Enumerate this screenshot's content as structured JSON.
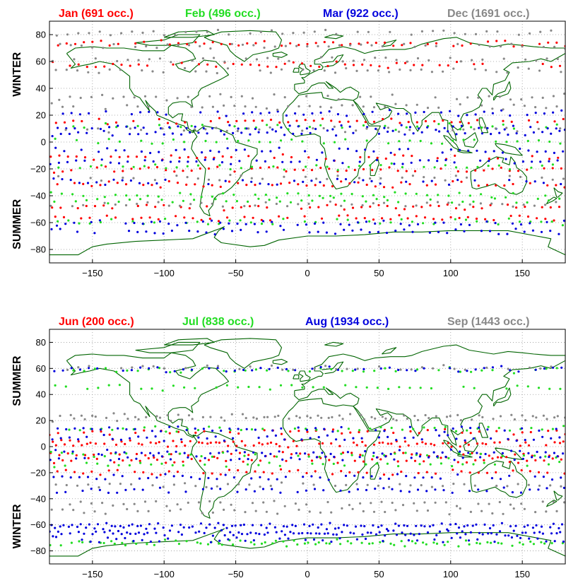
{
  "chart_data": [
    {
      "type": "scatter",
      "xlim": [
        -180,
        180
      ],
      "ylim": [
        -90,
        90
      ],
      "xticks": [
        -150,
        -100,
        -50,
        0,
        50,
        100,
        150
      ],
      "yticks": [
        -80,
        -60,
        -40,
        -20,
        0,
        20,
        40,
        60,
        80
      ],
      "grid": true,
      "legend_placement": "top",
      "top_label": "WINTER",
      "bottom_label": "SUMMER",
      "coastline_color": "#006400",
      "series": [
        {
          "name": "Jan (691 occ.)",
          "color": "#ff0000",
          "lat_bands": [
            72,
            59,
            14,
            -10,
            -22,
            -30,
            -50,
            -55
          ]
        },
        {
          "name": "Feb (496 occ.)",
          "color": "#22dd22",
          "lat_bands": [
            10,
            2,
            -20,
            -38,
            -45,
            -58
          ]
        },
        {
          "name": "Mar (922 occ.)",
          "color": "#0000dd",
          "lat_bands": [
            20,
            12,
            5,
            -5,
            -16,
            -28,
            -62,
            -65
          ]
        },
        {
          "name": "Dec (1691 occ.)",
          "color": "#888888",
          "lat_bands": [
            80,
            73,
            60,
            55,
            32,
            28,
            8,
            -25,
            -48
          ]
        }
      ]
    },
    {
      "type": "scatter",
      "xlim": [
        -180,
        180
      ],
      "ylim": [
        -90,
        90
      ],
      "xticks": [
        -150,
        -100,
        -50,
        0,
        50,
        100,
        150
      ],
      "yticks": [
        -80,
        -60,
        -40,
        -20,
        0,
        20,
        40,
        60,
        80
      ],
      "grid": true,
      "legend_placement": "top",
      "top_label": "SUMMER",
      "bottom_label": "WINTER",
      "coastline_color": "#006400",
      "series": [
        {
          "name": "Jun (200 occ.)",
          "color": "#ff0000",
          "lat_bands": [
            10,
            5,
            0,
            -5,
            -12,
            -18
          ]
        },
        {
          "name": "Jul (838 occ.)",
          "color": "#22dd22",
          "lat_bands": [
            57,
            47,
            12,
            -5,
            -15,
            -72,
            -76
          ]
        },
        {
          "name": "Aug (1934 occ.)",
          "color": "#0000dd",
          "lat_bands": [
            58,
            15,
            5,
            -3,
            -10,
            -22,
            -35,
            -60,
            -62,
            -65,
            -68,
            -70
          ]
        },
        {
          "name": "Sep (1443 occ.)",
          "color": "#888888",
          "lat_bands": [
            59,
            25,
            20,
            -28,
            -45,
            -48
          ]
        }
      ]
    }
  ]
}
